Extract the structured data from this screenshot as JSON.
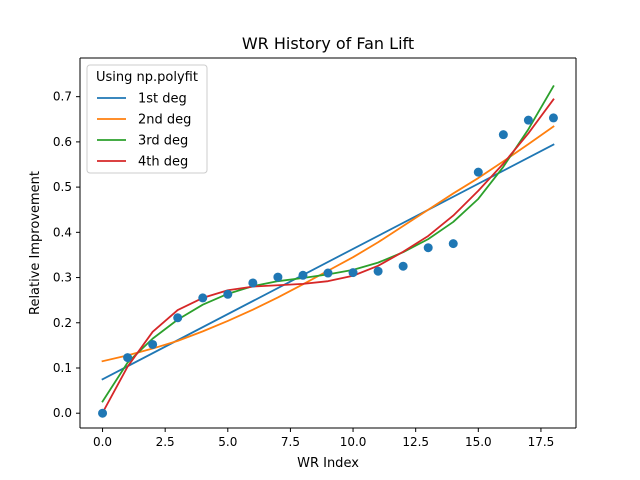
{
  "chart_data": {
    "type": "scatter",
    "title": "WR History of Fan Lift",
    "xlabel": "WR Index",
    "ylabel": "Relative Improvement",
    "xlim": [
      -0.9,
      18.9
    ],
    "ylim": [
      -0.0327,
      0.7855
    ],
    "grid": false,
    "legend": {
      "title": "Using np.polyfit",
      "placement": "top-left"
    },
    "x_ticks": [
      0,
      2.5,
      5,
      7.5,
      10,
      12.5,
      15,
      17.5
    ],
    "x_tick_labels": [
      "0.0",
      "2.5",
      "5.0",
      "7.5",
      "10.0",
      "12.5",
      "15.0",
      "17.5"
    ],
    "y_ticks": [
      0,
      0.1,
      0.2,
      0.3,
      0.4,
      0.5,
      0.6,
      0.7
    ],
    "y_tick_labels": [
      "0.0",
      "0.1",
      "0.2",
      "0.3",
      "0.4",
      "0.5",
      "0.6",
      "0.7"
    ],
    "points": {
      "color": "#1f77b4",
      "x": [
        0,
        1,
        2,
        3,
        4,
        5,
        6,
        7,
        8,
        9,
        10,
        11,
        12,
        13,
        14,
        15,
        16,
        17,
        18
      ],
      "y": [
        0.0,
        0.123,
        0.152,
        0.211,
        0.255,
        0.263,
        0.288,
        0.301,
        0.305,
        0.31,
        0.311,
        0.314,
        0.325,
        0.366,
        0.375,
        0.533,
        0.616,
        0.648,
        0.653
      ]
    },
    "series": [
      {
        "name": "1st deg",
        "color": "#1f77b4",
        "x": [
          0,
          18
        ],
        "y": [
          0.075,
          0.594
        ]
      },
      {
        "name": "2nd deg",
        "color": "#ff7f0e",
        "x": [
          0,
          1,
          2,
          3,
          4,
          5,
          6,
          7,
          8,
          9,
          10,
          11,
          12,
          13,
          14,
          15,
          16,
          17,
          18
        ],
        "y": [
          0.115,
          0.128,
          0.143,
          0.16,
          0.181,
          0.204,
          0.229,
          0.256,
          0.285,
          0.315,
          0.345,
          0.378,
          0.414,
          0.45,
          0.486,
          0.52,
          0.557,
          0.595,
          0.634
        ]
      },
      {
        "name": "3rd deg",
        "color": "#2ca02c",
        "x": [
          0,
          1,
          2,
          3,
          4,
          5,
          6,
          7,
          8,
          9,
          10,
          11,
          12,
          13,
          14,
          15,
          16,
          17,
          18
        ],
        "y": [
          0.026,
          0.112,
          0.165,
          0.207,
          0.24,
          0.264,
          0.281,
          0.292,
          0.299,
          0.307,
          0.317,
          0.333,
          0.356,
          0.385,
          0.423,
          0.474,
          0.545,
          0.628,
          0.723
        ]
      },
      {
        "name": "4th deg",
        "color": "#d62728",
        "x": [
          0,
          1,
          2,
          3,
          4,
          5,
          6,
          7,
          8,
          9,
          10,
          11,
          12,
          13,
          14,
          15,
          16,
          17,
          18
        ],
        "y": [
          0.001,
          0.103,
          0.18,
          0.228,
          0.255,
          0.272,
          0.28,
          0.283,
          0.286,
          0.292,
          0.304,
          0.326,
          0.357,
          0.392,
          0.437,
          0.492,
          0.552,
          0.619,
          0.694
        ]
      }
    ]
  }
}
